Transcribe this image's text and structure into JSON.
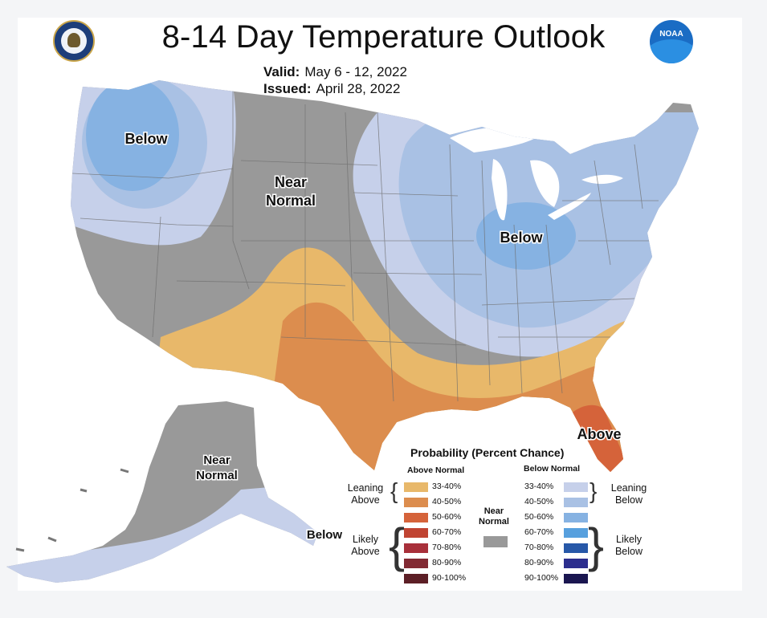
{
  "header": {
    "title": "8-14 Day Temperature Outlook",
    "valid_label": "Valid:",
    "valid_value": "May 6 - 12, 2022",
    "issued_label": "Issued:",
    "issued_value": "April 28, 2022",
    "left_logo": "dept-of-commerce-seal",
    "right_logo": "noaa-logo",
    "right_logo_text": "NOAA"
  },
  "map_labels": {
    "pacific_nw": "Below",
    "rockies_near": "Near\nNormal",
    "great_lakes": "Below",
    "florida": "Above",
    "alaska_near": "Near\nNormal",
    "alaska_south": "Below"
  },
  "legend": {
    "title": "Probability (Percent Chance)",
    "above_header": "Above Normal",
    "below_header": "Below Normal",
    "near_label": "Near\nNormal",
    "leaning_above": "Leaning\nAbove",
    "likely_above": "Likely\nAbove",
    "leaning_below": "Leaning\nBelow",
    "likely_below": "Likely\nBelow",
    "above_rows": [
      {
        "range": "33-40%",
        "color": "#e8b86a"
      },
      {
        "range": "40-50%",
        "color": "#dc8d4e"
      },
      {
        "range": "50-60%",
        "color": "#d5633a"
      },
      {
        "range": "60-70%",
        "color": "#c04432"
      },
      {
        "range": "70-80%",
        "color": "#a8303a"
      },
      {
        "range": "80-90%",
        "color": "#822a33"
      },
      {
        "range": "90-100%",
        "color": "#5c1f26"
      }
    ],
    "below_rows": [
      {
        "range": "33-40%",
        "color": "#c6d0ea"
      },
      {
        "range": "40-50%",
        "color": "#a9c1e4"
      },
      {
        "range": "50-60%",
        "color": "#86b2e2"
      },
      {
        "range": "60-70%",
        "color": "#57a0de"
      },
      {
        "range": "70-80%",
        "color": "#2758a8"
      },
      {
        "range": "80-90%",
        "color": "#2c2e8e"
      },
      {
        "range": "90-100%",
        "color": "#1a1650"
      }
    ],
    "near_color": "#999999"
  },
  "colors": {
    "near": "#999999",
    "lean_above": "#e8b86a",
    "above_40": "#dc8d4e",
    "above_50": "#d5633a",
    "lean_below": "#c6d0ea",
    "below_40": "#a9c1e4",
    "below_50": "#86b2e2",
    "lakes": "#ffffff"
  }
}
